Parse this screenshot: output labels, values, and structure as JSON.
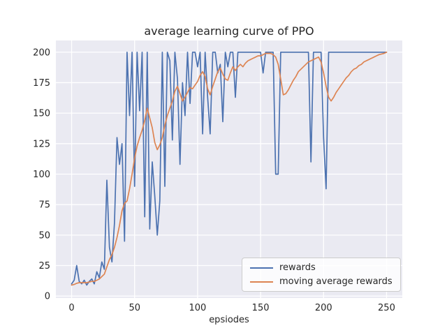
{
  "chart_data": {
    "type": "line",
    "title": "average learning curve of PPO",
    "xlabel": "epsiodes",
    "ylabel": "",
    "xlim": [
      -12.5,
      262.5
    ],
    "ylim": [
      -1.6,
      209.6
    ],
    "x_ticks": [
      0,
      50,
      100,
      150,
      200,
      250
    ],
    "y_ticks": [
      0,
      25,
      50,
      75,
      100,
      125,
      150,
      175,
      200
    ],
    "grid": "on",
    "legend_position": "lower right inside",
    "x_start": 0,
    "x_step": 2,
    "colors": {
      "axes_bg": "#eaeaf2",
      "grid": "#ffffff",
      "text": "#262626",
      "rewards": "#4c72b0",
      "moving_avg": "#dd8452",
      "legend_border": "#cccccc"
    },
    "series": [
      {
        "name": "rewards",
        "color_key": "rewards",
        "data_name": "rewards-line",
        "values": [
          10,
          13,
          25,
          12,
          10,
          13,
          9,
          12,
          14,
          10,
          20,
          15,
          28,
          22,
          95,
          40,
          28,
          60,
          130,
          108,
          125,
          45,
          200,
          148,
          200,
          90,
          200,
          152,
          200,
          65,
          200,
          55,
          110,
          82,
          50,
          78,
          200,
          90,
          200,
          193,
          128,
          200,
          178,
          108,
          175,
          148,
          200,
          158,
          200,
          200,
          188,
          200,
          133,
          200,
          163,
          133,
          200,
          200,
          183,
          190,
          143,
          200,
          188,
          200,
          200,
          163,
          200,
          200,
          200,
          200,
          200,
          200,
          200,
          200,
          200,
          200,
          183,
          200,
          200,
          200,
          200,
          100,
          100,
          200,
          200,
          200,
          200,
          200,
          200,
          200,
          200,
          200,
          200,
          200,
          200,
          110,
          200,
          200,
          200,
          200,
          130,
          88,
          200,
          200,
          200,
          200,
          200,
          200,
          200,
          200,
          200,
          200,
          200,
          200,
          200,
          200,
          200,
          200,
          200,
          200,
          200,
          200,
          200,
          200,
          200,
          200
        ]
      },
      {
        "name": "moving average rewards",
        "color_key": "moving_avg",
        "data_name": "moving-average-line",
        "values": [
          9,
          9.5,
          10.5,
          11,
          11,
          11,
          11,
          11.5,
          12,
          12,
          13,
          14,
          16,
          18,
          24,
          30,
          34,
          40,
          48,
          58,
          70,
          76,
          78,
          88,
          100,
          113,
          123,
          130,
          136,
          144,
          154,
          146,
          138,
          126,
          120,
          124,
          130,
          140,
          148,
          154,
          160,
          168,
          172,
          166,
          160,
          163,
          167,
          171,
          170,
          173,
          176,
          181,
          184,
          180,
          170,
          165,
          172,
          178,
          184,
          187,
          182,
          178,
          177,
          183,
          188,
          185,
          188,
          190,
          188,
          191,
          193,
          194,
          195,
          196,
          197,
          197,
          198,
          199,
          199,
          199,
          198,
          196,
          190,
          178,
          165,
          166,
          169,
          173,
          177,
          180,
          184,
          186,
          188,
          190,
          192,
          193,
          194,
          195,
          196,
          192,
          183,
          172,
          163,
          160,
          163,
          167,
          170,
          173,
          176,
          179,
          181,
          184,
          186,
          187,
          189,
          190,
          192,
          193,
          194,
          195,
          196,
          197,
          198,
          198.5,
          199,
          200
        ]
      }
    ]
  }
}
